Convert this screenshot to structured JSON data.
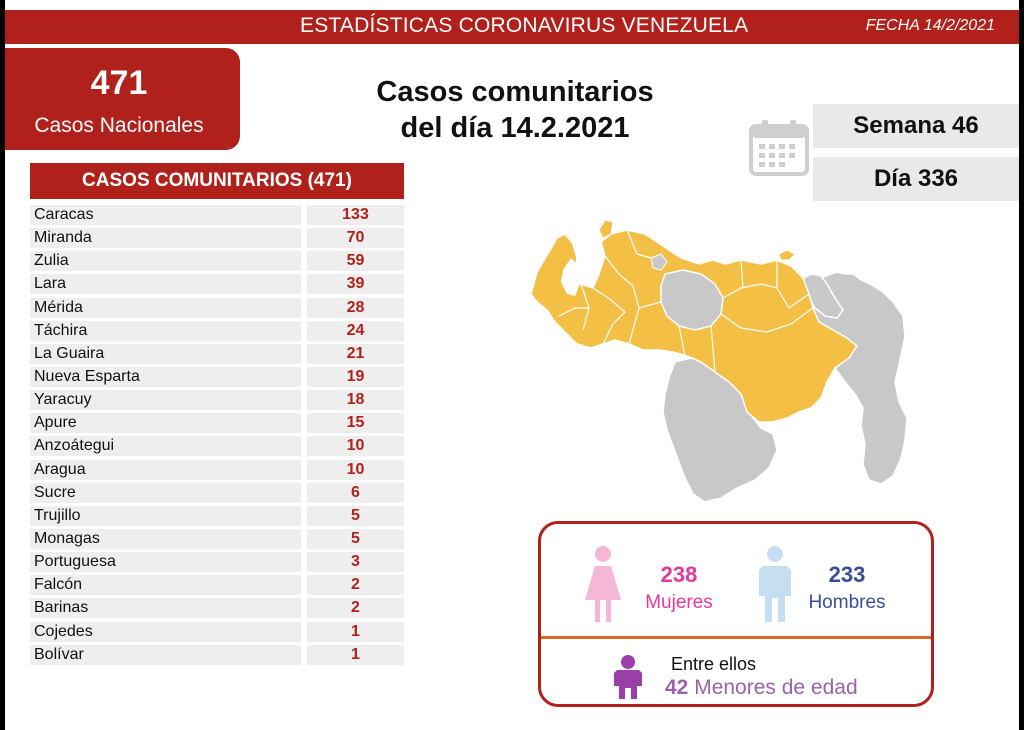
{
  "banner": {
    "title": "ESTADÍSTICAS CORONAVIRUS VENEZUELA",
    "date": "FECHA 14/2/2021"
  },
  "national": {
    "count": "471",
    "label": "Casos Nacionales"
  },
  "headline": {
    "line1": "Casos comunitarios",
    "line2": "del día 14.2.2021"
  },
  "calendar": {
    "icon": "calendar-icon",
    "week": "Semana 46",
    "day": "Día 336"
  },
  "table": {
    "header": "CASOS COMUNITARIOS (471)",
    "rows": [
      {
        "name": "Caracas",
        "value": "133"
      },
      {
        "name": "Miranda",
        "value": "70"
      },
      {
        "name": "Zulia",
        "value": "59"
      },
      {
        "name": "Lara",
        "value": "39"
      },
      {
        "name": "Mérida",
        "value": "28"
      },
      {
        "name": "Táchira",
        "value": "24"
      },
      {
        "name": "La Guaira",
        "value": "21"
      },
      {
        "name": "Nueva Esparta",
        "value": "19"
      },
      {
        "name": "Yaracuy",
        "value": "18"
      },
      {
        "name": "Apure",
        "value": "15"
      },
      {
        "name": "Anzoátegui",
        "value": "10"
      },
      {
        "name": "Aragua",
        "value": "10"
      },
      {
        "name": "Sucre",
        "value": "6"
      },
      {
        "name": "Trujillo",
        "value": "5"
      },
      {
        "name": "Monagas",
        "value": "5"
      },
      {
        "name": "Portuguesa",
        "value": "3"
      },
      {
        "name": "Falcón",
        "value": "2"
      },
      {
        "name": "Barinas",
        "value": "2"
      },
      {
        "name": "Cojedes",
        "value": "1"
      },
      {
        "name": "Bolívar",
        "value": "1"
      }
    ]
  },
  "map": {
    "icon": "venezuela-map",
    "colors": {
      "affected": "#f4bf45",
      "unaffected": "#c8c8c8"
    }
  },
  "gender": {
    "women": {
      "count": "238",
      "label": "Mujeres",
      "icon": "woman-icon",
      "color": "#e5399a"
    },
    "men": {
      "count": "233",
      "label": "Hombres",
      "icon": "man-icon",
      "color": "#3a4d9a"
    },
    "among_label": "Entre ellos",
    "minors": {
      "count": "42",
      "label": "Menores de edad",
      "icon": "child-icon",
      "color": "#9a62ad"
    }
  },
  "colors": {
    "brand_red": "#b0211c",
    "divider_orange": "#d96a2b"
  }
}
